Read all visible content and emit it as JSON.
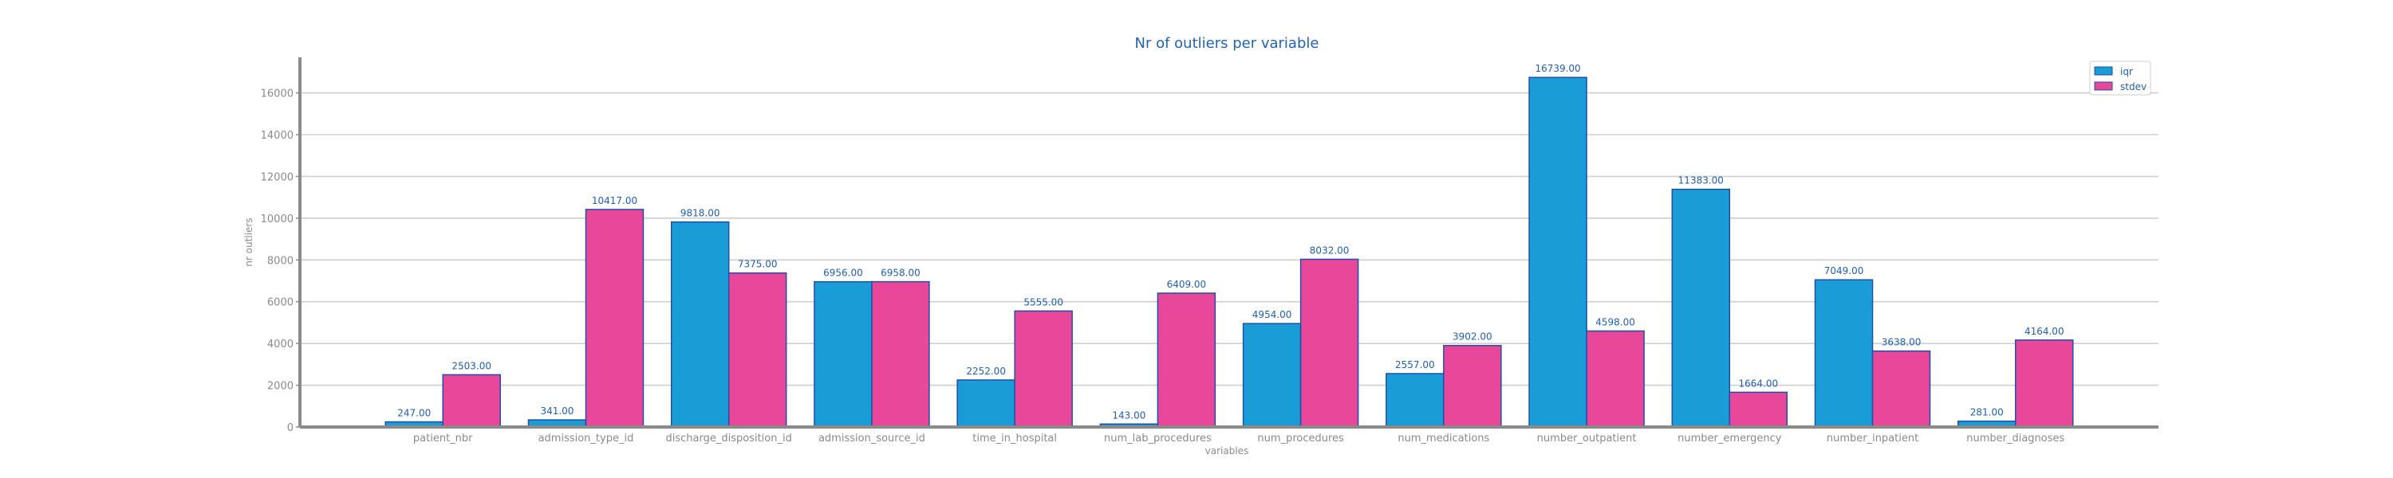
{
  "chart_data": {
    "type": "bar",
    "title": "Nr of outliers per variable",
    "xlabel": "variables",
    "ylabel": "nr outliers",
    "categories": [
      "patient_nbr",
      "admission_type_id",
      "discharge_disposition_id",
      "admission_source_id",
      "time_in_hospital",
      "num_lab_procedures",
      "num_procedures",
      "num_medications",
      "number_outpatient",
      "number_emergency",
      "number_inpatient",
      "number_diagnoses"
    ],
    "series": [
      {
        "name": "iqr",
        "color": "#1a9cd6",
        "values": [
          247,
          341,
          9818,
          6956,
          2252,
          143,
          4954,
          2557,
          16739,
          11383,
          7049,
          281
        ],
        "labels": [
          "247.00",
          "341.00",
          "9818.00",
          "6956.00",
          "2252.00",
          "143.00",
          "4954.00",
          "2557.00",
          "16739.00",
          "11383.00",
          "7049.00",
          "281.00"
        ]
      },
      {
        "name": "stdev",
        "color": "#e8479a",
        "values": [
          2503,
          10417,
          7375,
          6958,
          5555,
          6409,
          8032,
          3902,
          4598,
          1664,
          3638,
          4164
        ],
        "labels": [
          "2503.00",
          "10417.00",
          "7375.00",
          "6958.00",
          "5555.00",
          "6409.00",
          "8032.00",
          "3902.00",
          "4598.00",
          "1664.00",
          "3638.00",
          "4164.00"
        ]
      }
    ],
    "yticks": [
      "0",
      "2000",
      "4000",
      "6000",
      "8000",
      "10000",
      "12000",
      "14000",
      "16000"
    ],
    "ylim": [
      0,
      17700
    ],
    "grid": "horizontal",
    "legend_position": "top-right",
    "bar_edge_color": "#1f4fa8"
  }
}
